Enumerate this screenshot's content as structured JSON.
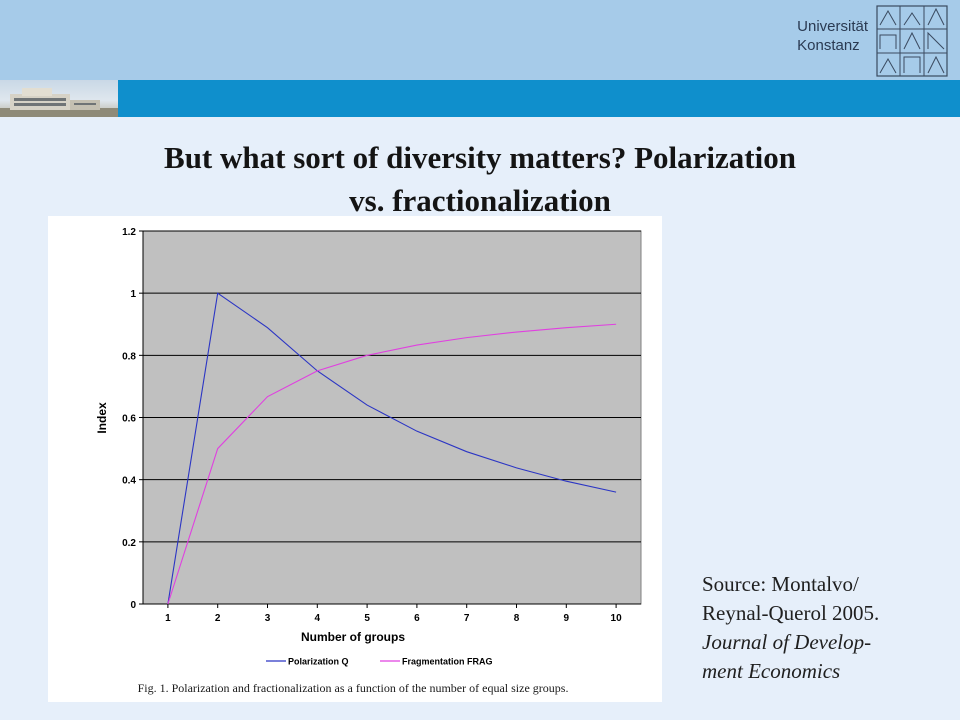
{
  "header": {
    "university_line1": "Universität",
    "university_line2": "Konstanz",
    "logo_icon": "university-konstanz-logo-icon",
    "photo_icon": "campus-building-photo-icon"
  },
  "slide": {
    "title_line1": "But what sort of diversity matters? Polarization",
    "title_line2": "vs. fractionalization"
  },
  "source": {
    "line1": "Source: Montalvo/",
    "line2": "Reynal-Querol 2005.",
    "journal_line1": "Journal of Develop-",
    "journal_line2": "ment Economics"
  },
  "chart_data": {
    "type": "line",
    "title": "",
    "xlabel": "Number of groups",
    "ylabel": "Index",
    "x": [
      1,
      2,
      3,
      4,
      5,
      6,
      7,
      8,
      9,
      10
    ],
    "xticks": [
      "1",
      "2",
      "3",
      "4",
      "5",
      "6",
      "7",
      "8",
      "9",
      "10"
    ],
    "yticks": [
      "0",
      "0.2",
      "0.4",
      "0.6",
      "0.8",
      "1",
      "1.2"
    ],
    "ylim": [
      0,
      1.2
    ],
    "grid": true,
    "legend_position": "bottom",
    "series": [
      {
        "name": "Polarization Q",
        "color": "#2b35c4",
        "values": [
          0,
          1.0,
          0.889,
          0.75,
          0.64,
          0.556,
          0.49,
          0.438,
          0.395,
          0.36
        ]
      },
      {
        "name": "Fragmentation FRAG",
        "color": "#e040e0",
        "values": [
          0,
          0.5,
          0.667,
          0.75,
          0.8,
          0.833,
          0.857,
          0.875,
          0.889,
          0.9
        ]
      }
    ],
    "caption": "Fig. 1. Polarization and fractionalization as a function of the number of equal size groups."
  }
}
